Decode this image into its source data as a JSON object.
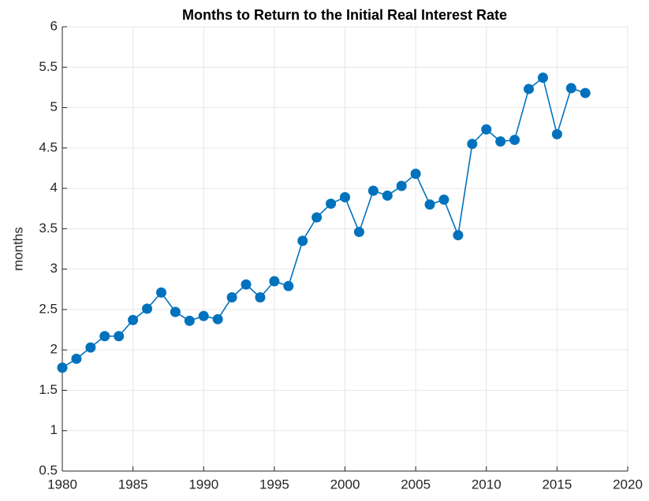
{
  "chart_data": {
    "type": "line",
    "title": "Months to Return to the Initial Real Interest Rate",
    "y_label": "months",
    "x": [
      1980,
      1981,
      1982,
      1983,
      1984,
      1985,
      1986,
      1987,
      1988,
      1989,
      1990,
      1991,
      1992,
      1993,
      1994,
      1995,
      1996,
      1997,
      1998,
      1999,
      2000,
      2001,
      2002,
      2003,
      2004,
      2005,
      2006,
      2007,
      2008,
      2009,
      2010,
      2011,
      2012,
      2013,
      2014,
      2015,
      2016,
      2017
    ],
    "series": [
      {
        "name": "months",
        "color": "#0072BD",
        "values": [
          1.78,
          1.89,
          2.03,
          2.17,
          2.17,
          2.37,
          2.51,
          2.71,
          2.47,
          2.36,
          2.42,
          2.38,
          2.65,
          2.81,
          2.65,
          2.85,
          2.79,
          3.35,
          3.64,
          3.81,
          3.89,
          3.46,
          3.97,
          3.91,
          4.03,
          4.18,
          3.8,
          3.86,
          3.42,
          4.55,
          4.73,
          4.58,
          4.6,
          5.23,
          5.37,
          4.67,
          5.24,
          5.18
        ]
      }
    ],
    "xlim": [
      1980,
      2020
    ],
    "xticks": [
      1980,
      1985,
      1990,
      1995,
      2000,
      2005,
      2010,
      2015,
      2020
    ],
    "ylim": [
      0.5,
      6
    ],
    "yticks": [
      0.5,
      1,
      1.5,
      2,
      2.5,
      3,
      3.5,
      4,
      4.5,
      5,
      5.5,
      6
    ],
    "grid": true
  }
}
